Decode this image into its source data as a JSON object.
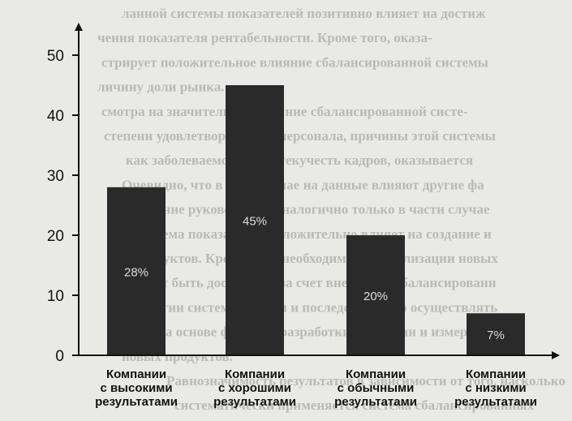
{
  "background_text": [
    "ланной системы показателей позитивно влияет на достиж",
    "чения показателя рентабельности. Кроме того, оказа-",
    "стрирует положительное влияние сбалансированной системы",
    "личину доли рынка.",
    "смотра на значительное влияние сбалансированной систе-",
    "степени удовлетворенности персонала, причины этой системы",
    "как заболеваемость или текучесть кадров, оказывается",
    "Очевидно, что в этом случае на данные влияют другие фа",
    "поведение руководства. Аналогично только в части случае",
    "ная система показателей положительно влияет на создание и",
    "продуктов. Кроме того, необходима для реализации новых",
    "может быть достигнута за счет внедрения сбалансированн",
    "стратегии систематически и последовательно осуществлять",
    "стия на основе функции разработки стратегии и измерения",
    "новых продуктов.",
    "Равнозначимость результатов в зависимости от того, насколько",
    "систематически применяется система сбалансированных"
  ],
  "chart_data": {
    "type": "bar",
    "categories": [
      [
        "Компании",
        "с высокими",
        "результатами"
      ],
      [
        "Компании",
        "с хорошими",
        "результатами"
      ],
      [
        "Компании",
        "с обычными",
        "результатами"
      ],
      [
        "Компании",
        "с низкими",
        "результатами"
      ]
    ],
    "values": [
      28,
      45,
      20,
      7
    ],
    "data_labels": [
      "28%",
      "45%",
      "20%",
      "7%"
    ],
    "yticks": [
      0,
      10,
      20,
      30,
      40,
      50
    ],
    "ylim": [
      0,
      55
    ],
    "title": "",
    "xlabel": "",
    "ylabel": "",
    "grid": false,
    "colors": {
      "bar": "#2a2a2a",
      "axis": "#111111",
      "data_label": "#dddddd"
    }
  }
}
